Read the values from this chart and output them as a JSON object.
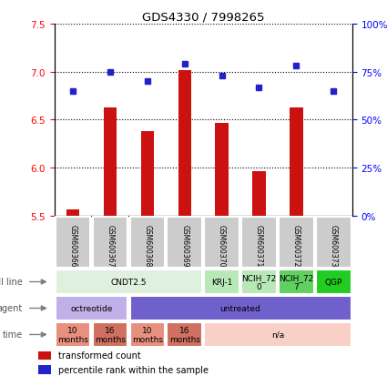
{
  "title": "GDS4330 / 7998265",
  "samples": [
    "GSM600366",
    "GSM600367",
    "GSM600368",
    "GSM600369",
    "GSM600370",
    "GSM600371",
    "GSM600372",
    "GSM600373"
  ],
  "red_values": [
    5.57,
    6.63,
    6.38,
    7.02,
    6.47,
    5.96,
    6.63,
    5.5
  ],
  "blue_values": [
    65,
    75,
    70,
    79,
    73,
    67,
    78,
    65
  ],
  "ylim_left": [
    5.5,
    7.5
  ],
  "ylim_right": [
    0,
    100
  ],
  "yticks_left": [
    5.5,
    6.0,
    6.5,
    7.0,
    7.5
  ],
  "yticks_right": [
    0,
    25,
    50,
    75,
    100
  ],
  "ytick_labels_right": [
    "0%",
    "25%",
    "50%",
    "75%",
    "100%"
  ],
  "bar_color": "#cc1111",
  "dot_color": "#2222cc",
  "bar_width": 0.35,
  "baseline": 5.5,
  "cell_segments": [
    [
      0,
      3,
      "CNDT2.5",
      "#dff0df"
    ],
    [
      4,
      4,
      "KRJ-1",
      "#b8e8b8"
    ],
    [
      5,
      5,
      "NCIH_72\n0",
      "#b8e8b8"
    ],
    [
      6,
      6,
      "NCIH_72\n7",
      "#60d060"
    ],
    [
      7,
      7,
      "QGP",
      "#22cc22"
    ]
  ],
  "agent_segments": [
    [
      0,
      1,
      "octreotide",
      "#c0b0e8"
    ],
    [
      2,
      7,
      "untreated",
      "#7060cc"
    ]
  ],
  "time_segments": [
    [
      0,
      0,
      "10\nmonths",
      "#e89080"
    ],
    [
      1,
      1,
      "16\nmonths",
      "#d07060"
    ],
    [
      2,
      2,
      "10\nmonths",
      "#e89080"
    ],
    [
      3,
      3,
      "16\nmonths",
      "#d07060"
    ],
    [
      4,
      7,
      "n/a",
      "#f8d0c8"
    ]
  ],
  "legend_red": "transformed count",
  "legend_blue": "percentile rank within the sample",
  "sample_box_color": "#cccccc",
  "row_label_color": "#555555"
}
